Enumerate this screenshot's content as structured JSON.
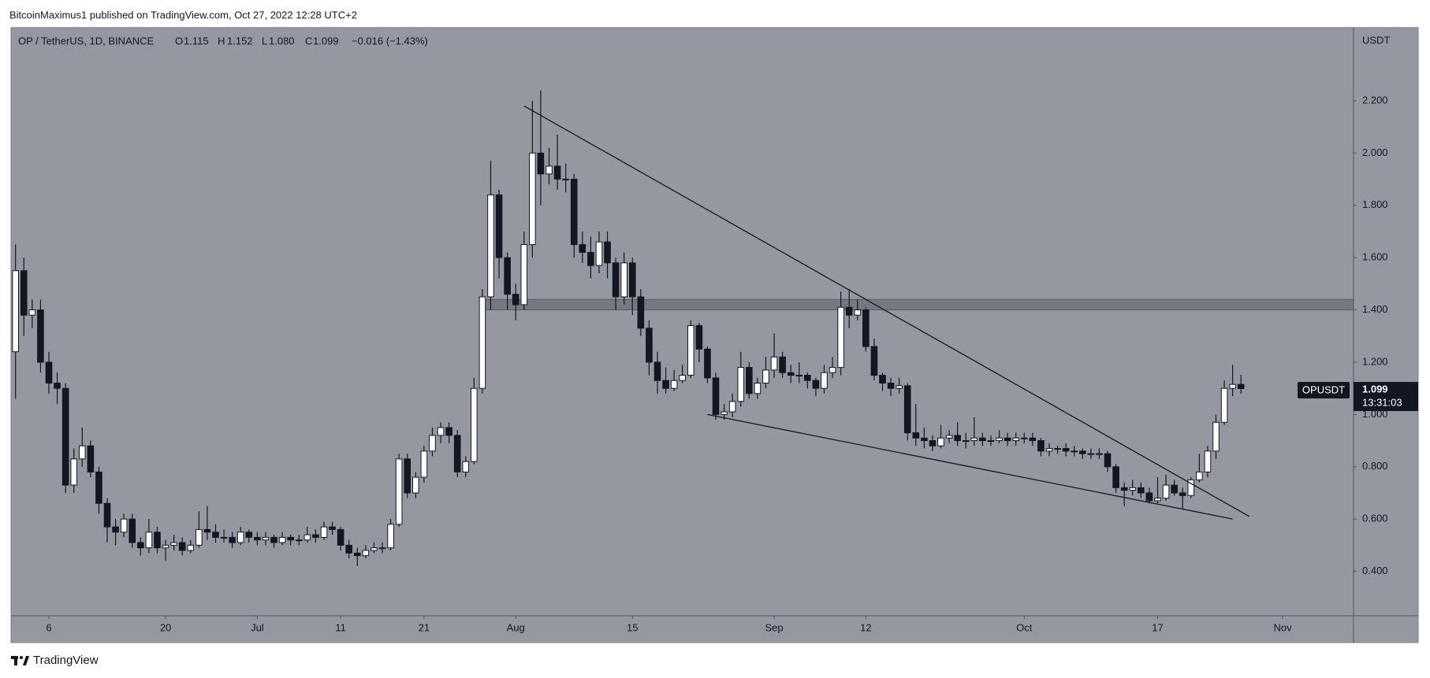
{
  "header": {
    "published": "BitcoinMaximus1 published on TradingView.com, Oct 27, 2022 12:28 UTC+2"
  },
  "footer": {
    "brand": "TradingView"
  },
  "chart_data": {
    "type": "candlestick",
    "title": "OP / TetherUS, 1D, BINANCE",
    "readout_prefixes": [
      "O",
      "H",
      "L",
      "C"
    ],
    "readout": [
      "1.115",
      "1.152",
      "1.080",
      "1.099"
    ],
    "change": "−0.016 (−1.43%)",
    "symbol": "OPUSDT",
    "currency": "USDT",
    "countdown": "13:31:03",
    "colors": {
      "up": "#ffffff",
      "down": "#131722",
      "wick": "#131722"
    },
    "grid": false,
    "x": [
      "Jun 2",
      "Jun 3",
      "Jun 4",
      "Jun 5",
      "Jun 6",
      "Jun 7",
      "Jun 8",
      "Jun 9",
      "Jun 10",
      "Jun 11",
      "Jun 12",
      "Jun 13",
      "Jun 14",
      "Jun 15",
      "Jun 16",
      "Jun 17",
      "Jun 18",
      "Jun 19",
      "Jun 20",
      "Jun 21",
      "Jun 22",
      "Jun 23",
      "Jun 24",
      "Jun 25",
      "Jun 26",
      "Jun 27",
      "Jun 28",
      "Jun 29",
      "Jun 30",
      "Jul 1",
      "Jul 2",
      "Jul 3",
      "Jul 4",
      "Jul 5",
      "Jul 6",
      "Jul 7",
      "Jul 8",
      "Jul 9",
      "Jul 10",
      "Jul 11",
      "Jul 12",
      "Jul 13",
      "Jul 14",
      "Jul 15",
      "Jul 16",
      "Jul 17",
      "Jul 18",
      "Jul 19",
      "Jul 20",
      "Jul 21",
      "Jul 22",
      "Jul 23",
      "Jul 24",
      "Jul 25",
      "Jul 26",
      "Jul 27",
      "Jul 28",
      "Jul 29",
      "Jul 30",
      "Jul 31",
      "Aug 1",
      "Aug 2",
      "Aug 3",
      "Aug 4",
      "Aug 5",
      "Aug 6",
      "Aug 7",
      "Aug 8",
      "Aug 9",
      "Aug 10",
      "Aug 11",
      "Aug 12",
      "Aug 13",
      "Aug 14",
      "Aug 15",
      "Aug 16",
      "Aug 17",
      "Aug 18",
      "Aug 19",
      "Aug 20",
      "Aug 21",
      "Aug 22",
      "Aug 23",
      "Aug 24",
      "Aug 25",
      "Aug 26",
      "Aug 27",
      "Aug 28",
      "Aug 29",
      "Aug 30",
      "Aug 31",
      "Sep 1",
      "Sep 2",
      "Sep 3",
      "Sep 4",
      "Sep 5",
      "Sep 6",
      "Sep 7",
      "Sep 8",
      "Sep 9",
      "Sep 10",
      "Sep 11",
      "Sep 12",
      "Sep 13",
      "Sep 14",
      "Sep 15",
      "Sep 16",
      "Sep 17",
      "Sep 18",
      "Sep 19",
      "Sep 20",
      "Sep 21",
      "Sep 22",
      "Sep 23",
      "Sep 24",
      "Sep 25",
      "Sep 26",
      "Sep 27",
      "Sep 28",
      "Sep 29",
      "Sep 30",
      "Oct 1",
      "Oct 2",
      "Oct 3",
      "Oct 4",
      "Oct 5",
      "Oct 6",
      "Oct 7",
      "Oct 8",
      "Oct 9",
      "Oct 10",
      "Oct 11",
      "Oct 12",
      "Oct 13",
      "Oct 14",
      "Oct 15",
      "Oct 16",
      "Oct 17",
      "Oct 18",
      "Oct 19",
      "Oct 20",
      "Oct 21",
      "Oct 22",
      "Oct 23",
      "Oct 24",
      "Oct 25",
      "Oct 26",
      "Oct 27"
    ],
    "open": [
      1.24,
      1.55,
      1.38,
      1.4,
      1.2,
      1.12,
      1.1,
      0.73,
      0.83,
      0.88,
      0.78,
      0.66,
      0.57,
      0.55,
      0.6,
      0.51,
      0.49,
      0.55,
      0.49,
      0.5,
      0.51,
      0.48,
      0.5,
      0.56,
      0.55,
      0.53,
      0.53,
      0.51,
      0.55,
      0.53,
      0.52,
      0.53,
      0.51,
      0.53,
      0.52,
      0.52,
      0.54,
      0.53,
      0.57,
      0.56,
      0.5,
      0.47,
      0.46,
      0.48,
      0.49,
      0.49,
      0.58,
      0.83,
      0.7,
      0.76,
      0.86,
      0.92,
      0.95,
      0.92,
      0.78,
      0.82,
      1.1,
      1.45,
      1.84,
      1.6,
      1.46,
      1.42,
      1.65,
      2.0,
      1.92,
      1.95,
      1.9,
      1.9,
      1.65,
      1.62,
      1.57,
      1.66,
      1.58,
      1.45,
      1.58,
      1.45,
      1.33,
      1.2,
      1.13,
      1.1,
      1.13,
      1.15,
      1.34,
      1.25,
      1.14,
      1.0,
      1.01,
      1.05,
      1.18,
      1.08,
      1.12,
      1.17,
      1.22,
      1.16,
      1.15,
      1.15,
      1.13,
      1.1,
      1.16,
      1.18,
      1.41,
      1.38,
      1.4,
      1.26,
      1.15,
      1.12,
      1.1,
      1.11,
      0.93,
      0.91,
      0.9,
      0.88,
      0.91,
      0.92,
      0.9,
      0.9,
      0.91,
      0.9,
      0.9,
      0.91,
      0.9,
      0.91,
      0.91,
      0.9,
      0.86,
      0.87,
      0.87,
      0.86,
      0.86,
      0.85,
      0.85,
      0.85,
      0.8,
      0.72,
      0.71,
      0.72,
      0.7,
      0.67,
      0.68,
      0.73,
      0.7,
      0.69,
      0.75,
      0.78,
      0.86,
      0.97,
      1.1,
      1.115
    ],
    "high": [
      1.65,
      1.6,
      1.44,
      1.44,
      1.24,
      1.16,
      1.12,
      0.87,
      0.95,
      0.9,
      0.8,
      0.68,
      0.6,
      0.62,
      0.62,
      0.53,
      0.6,
      0.57,
      0.52,
      0.54,
      0.53,
      0.52,
      0.63,
      0.65,
      0.58,
      0.56,
      0.55,
      0.57,
      0.56,
      0.55,
      0.55,
      0.54,
      0.55,
      0.54,
      0.54,
      0.57,
      0.56,
      0.59,
      0.59,
      0.57,
      0.52,
      0.49,
      0.5,
      0.51,
      0.51,
      0.6,
      0.85,
      0.85,
      0.78,
      0.88,
      0.95,
      0.97,
      0.97,
      0.94,
      0.84,
      1.14,
      1.48,
      1.97,
      1.86,
      1.62,
      1.5,
      1.7,
      2.2,
      2.24,
      2.02,
      2.07,
      1.96,
      1.92,
      1.7,
      1.68,
      1.7,
      1.7,
      1.6,
      1.62,
      1.6,
      1.48,
      1.36,
      1.24,
      1.18,
      1.17,
      1.19,
      1.36,
      1.35,
      1.26,
      1.16,
      1.04,
      1.08,
      1.24,
      1.2,
      1.14,
      1.22,
      1.31,
      1.24,
      1.19,
      1.2,
      1.16,
      1.14,
      1.19,
      1.22,
      1.47,
      1.48,
      1.44,
      1.41,
      1.29,
      1.16,
      1.14,
      1.14,
      1.12,
      1.04,
      0.95,
      0.92,
      0.96,
      0.94,
      0.97,
      0.93,
      0.99,
      0.93,
      0.92,
      0.94,
      0.93,
      0.93,
      0.93,
      0.93,
      0.91,
      0.89,
      0.88,
      0.89,
      0.88,
      0.87,
      0.87,
      0.87,
      0.86,
      0.81,
      0.74,
      0.75,
      0.74,
      0.72,
      0.76,
      0.77,
      0.75,
      0.72,
      0.76,
      0.85,
      0.88,
      1.0,
      1.13,
      1.19,
      1.152
    ],
    "low": [
      1.06,
      1.3,
      1.33,
      1.16,
      1.08,
      1.04,
      0.7,
      0.7,
      0.8,
      0.76,
      0.62,
      0.51,
      0.5,
      0.53,
      0.49,
      0.46,
      0.47,
      0.47,
      0.44,
      0.48,
      0.46,
      0.47,
      0.49,
      0.52,
      0.51,
      0.51,
      0.49,
      0.5,
      0.51,
      0.5,
      0.5,
      0.49,
      0.5,
      0.5,
      0.5,
      0.51,
      0.51,
      0.52,
      0.54,
      0.48,
      0.45,
      0.42,
      0.45,
      0.47,
      0.47,
      0.48,
      0.57,
      0.68,
      0.68,
      0.74,
      0.84,
      0.89,
      0.89,
      0.76,
      0.76,
      0.81,
      1.08,
      1.4,
      1.52,
      1.4,
      1.36,
      1.4,
      1.6,
      1.8,
      1.88,
      1.86,
      1.85,
      1.6,
      1.58,
      1.52,
      1.54,
      1.52,
      1.4,
      1.42,
      1.38,
      1.3,
      1.15,
      1.08,
      1.08,
      1.09,
      1.12,
      1.14,
      1.2,
      1.12,
      0.98,
      0.98,
      0.99,
      1.03,
      1.06,
      1.06,
      1.1,
      1.14,
      1.14,
      1.12,
      1.12,
      1.1,
      1.07,
      1.08,
      1.14,
      1.15,
      1.33,
      1.36,
      1.24,
      1.13,
      1.09,
      1.07,
      1.08,
      0.9,
      0.88,
      0.87,
      0.86,
      0.87,
      0.89,
      0.88,
      0.87,
      0.88,
      0.88,
      0.88,
      0.89,
      0.88,
      0.88,
      0.89,
      0.88,
      0.84,
      0.84,
      0.85,
      0.84,
      0.84,
      0.83,
      0.83,
      0.83,
      0.78,
      0.7,
      0.65,
      0.69,
      0.68,
      0.66,
      0.66,
      0.67,
      0.69,
      0.64,
      0.68,
      0.74,
      0.76,
      0.83,
      0.96,
      1.07,
      1.08
    ],
    "close": [
      1.55,
      1.38,
      1.4,
      1.2,
      1.12,
      1.1,
      0.73,
      0.83,
      0.88,
      0.78,
      0.66,
      0.57,
      0.55,
      0.6,
      0.51,
      0.49,
      0.55,
      0.49,
      0.5,
      0.51,
      0.48,
      0.5,
      0.56,
      0.55,
      0.53,
      0.53,
      0.51,
      0.55,
      0.53,
      0.52,
      0.53,
      0.51,
      0.53,
      0.52,
      0.52,
      0.54,
      0.53,
      0.57,
      0.56,
      0.5,
      0.47,
      0.46,
      0.48,
      0.49,
      0.49,
      0.58,
      0.83,
      0.7,
      0.76,
      0.86,
      0.92,
      0.95,
      0.92,
      0.78,
      0.82,
      1.1,
      1.45,
      1.84,
      1.6,
      1.46,
      1.42,
      1.65,
      2.0,
      1.92,
      1.95,
      1.9,
      1.9,
      1.65,
      1.62,
      1.57,
      1.66,
      1.58,
      1.45,
      1.58,
      1.45,
      1.33,
      1.2,
      1.13,
      1.1,
      1.13,
      1.15,
      1.34,
      1.25,
      1.14,
      1.0,
      1.01,
      1.05,
      1.18,
      1.08,
      1.12,
      1.17,
      1.22,
      1.16,
      1.15,
      1.15,
      1.13,
      1.1,
      1.16,
      1.18,
      1.41,
      1.38,
      1.4,
      1.26,
      1.15,
      1.12,
      1.1,
      1.11,
      0.93,
      0.91,
      0.9,
      0.88,
      0.91,
      0.92,
      0.9,
      0.9,
      0.91,
      0.9,
      0.9,
      0.91,
      0.9,
      0.91,
      0.91,
      0.9,
      0.86,
      0.87,
      0.87,
      0.86,
      0.86,
      0.85,
      0.85,
      0.85,
      0.8,
      0.72,
      0.71,
      0.72,
      0.7,
      0.67,
      0.68,
      0.73,
      0.7,
      0.69,
      0.75,
      0.78,
      0.86,
      0.97,
      1.1,
      1.115,
      1.099
    ],
    "ylim": [
      0.23,
      2.48
    ],
    "yticks": [
      {
        "value": 0.4,
        "label": "0.400"
      },
      {
        "value": 0.6,
        "label": "0.600"
      },
      {
        "value": 0.8,
        "label": "0.800"
      },
      {
        "value": 1.0,
        "label": "1.000"
      },
      {
        "value": 1.2,
        "label": "1.200"
      },
      {
        "value": 1.4,
        "label": "1.400"
      },
      {
        "value": 1.6,
        "label": "1.600"
      },
      {
        "value": 1.8,
        "label": "1.800"
      },
      {
        "value": 2.0,
        "label": "2.000"
      },
      {
        "value": 2.2,
        "label": "2.200"
      }
    ],
    "xticks": [
      {
        "value": "Jun 6",
        "label": "6"
      },
      {
        "value": "Jun 20",
        "label": "20"
      },
      {
        "value": "Jul 1",
        "label": "Jul"
      },
      {
        "value": "Jul 11",
        "label": "11"
      },
      {
        "value": "Jul 21",
        "label": "21"
      },
      {
        "value": "Aug 1",
        "label": "Aug"
      },
      {
        "value": "Aug 15",
        "label": "15"
      },
      {
        "value": "Sep 1",
        "label": "Sep"
      },
      {
        "value": "Sep 12",
        "label": "12"
      },
      {
        "value": "Oct 1",
        "label": "Oct"
      },
      {
        "value": "Oct 17",
        "label": "17"
      },
      {
        "value": "Nov 1",
        "label": "Nov"
      }
    ],
    "trendlines": [
      {
        "x": [
          "Aug 2",
          "Oct 28"
        ],
        "y": [
          2.18,
          0.61
        ]
      },
      {
        "x": [
          "Aug 24",
          "Oct 26"
        ],
        "y": [
          1.0,
          0.6
        ]
      }
    ],
    "zone": {
      "x": "Jul 28",
      "y": [
        1.4,
        1.44
      ]
    }
  }
}
